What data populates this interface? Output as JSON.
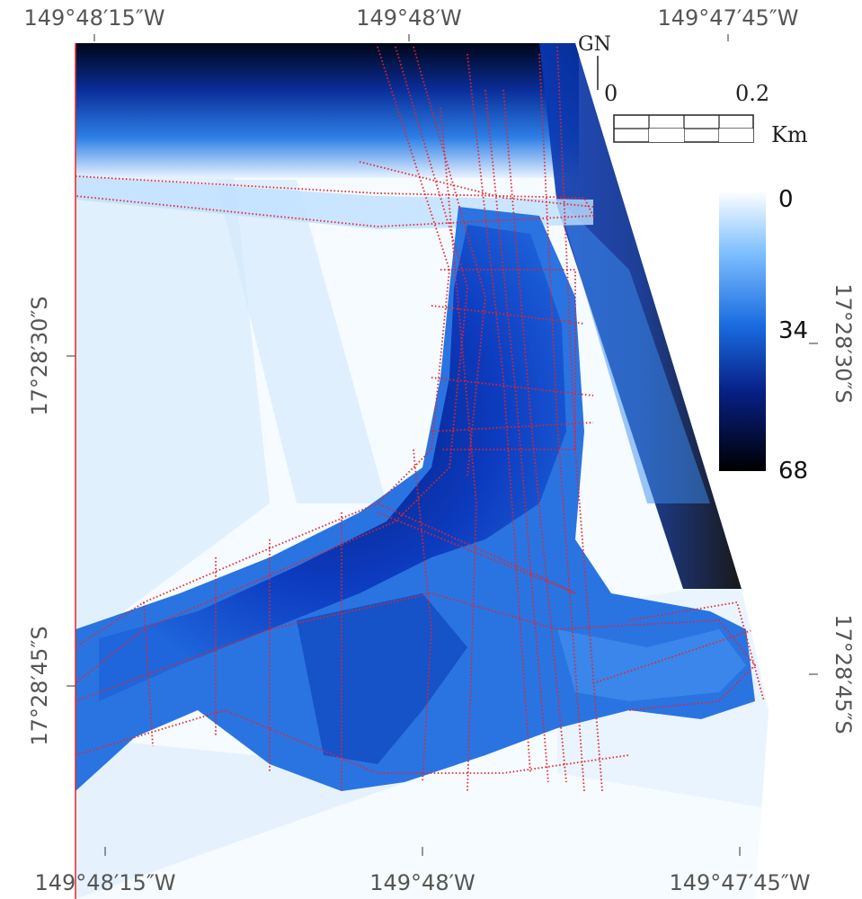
{
  "map": {
    "top_labels": [
      "149°48′15″W",
      "149°48′W",
      "149°47′45″W"
    ],
    "bottom_labels": [
      "149°48′15″W",
      "149°48′W",
      "149°47′45″W"
    ],
    "left_labels": [
      "17°28′30″S",
      "17°28′45″S"
    ],
    "right_labels": [
      "17°28′30″S",
      "17°28′45″S"
    ],
    "north_label": "GN",
    "scale": {
      "start": "0",
      "end": "0.2",
      "unit": "Km"
    },
    "colorbar": {
      "min": "0",
      "mid": "34",
      "max": "68",
      "color_low": "#ffffff",
      "color_mid": "#1a6be0",
      "color_high": "#000000"
    },
    "track_color": "#e8232a"
  }
}
